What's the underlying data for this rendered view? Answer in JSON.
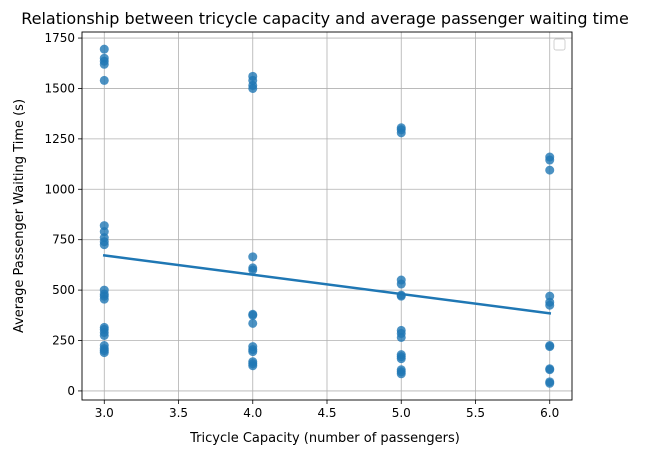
{
  "chart_data": {
    "type": "scatter",
    "title": "Relationship between tricycle capacity and average passenger waiting time",
    "xlabel": "Tricycle Capacity (number of passengers)",
    "ylabel": "Average Passenger Waiting Time (s)",
    "xlim": [
      2.85,
      6.15
    ],
    "ylim": [
      -45,
      1780
    ],
    "xticks": [
      3.0,
      3.5,
      4.0,
      4.5,
      5.0,
      5.5,
      6.0
    ],
    "xtick_labels": [
      "3.0",
      "3.5",
      "4.0",
      "4.5",
      "5.0",
      "5.5",
      "6.0"
    ],
    "yticks": [
      0,
      250,
      500,
      750,
      1000,
      1250,
      1500,
      1750
    ],
    "ytick_labels": [
      "0",
      "250",
      "500",
      "750",
      "1000",
      "1250",
      "1500",
      "1750"
    ],
    "grid": true,
    "legend": "top-right (empty)",
    "colors": {
      "points": "#1f77b4",
      "line": "#1f77b4"
    },
    "points": [
      [
        3.0,
        1695
      ],
      [
        3.0,
        1650
      ],
      [
        3.0,
        1635
      ],
      [
        3.0,
        1620
      ],
      [
        3.0,
        1540
      ],
      [
        3.0,
        820
      ],
      [
        3.0,
        790
      ],
      [
        3.0,
        760
      ],
      [
        3.0,
        740
      ],
      [
        3.0,
        725
      ],
      [
        3.0,
        500
      ],
      [
        3.0,
        480
      ],
      [
        3.0,
        470
      ],
      [
        3.0,
        455
      ],
      [
        3.0,
        315
      ],
      [
        3.0,
        305
      ],
      [
        3.0,
        290
      ],
      [
        3.0,
        275
      ],
      [
        3.0,
        225
      ],
      [
        3.0,
        210
      ],
      [
        3.0,
        200
      ],
      [
        3.0,
        190
      ],
      [
        4.0,
        1560
      ],
      [
        4.0,
        1540
      ],
      [
        4.0,
        1515
      ],
      [
        4.0,
        1500
      ],
      [
        4.0,
        665
      ],
      [
        4.0,
        610
      ],
      [
        4.0,
        600
      ],
      [
        4.0,
        380
      ],
      [
        4.0,
        375
      ],
      [
        4.0,
        335
      ],
      [
        4.0,
        220
      ],
      [
        4.0,
        205
      ],
      [
        4.0,
        195
      ],
      [
        4.0,
        145
      ],
      [
        4.0,
        135
      ],
      [
        4.0,
        125
      ],
      [
        5.0,
        1305
      ],
      [
        5.0,
        1295
      ],
      [
        5.0,
        1280
      ],
      [
        5.0,
        550
      ],
      [
        5.0,
        530
      ],
      [
        5.0,
        475
      ],
      [
        5.0,
        470
      ],
      [
        5.0,
        300
      ],
      [
        5.0,
        285
      ],
      [
        5.0,
        265
      ],
      [
        5.0,
        180
      ],
      [
        5.0,
        170
      ],
      [
        5.0,
        160
      ],
      [
        5.0,
        105
      ],
      [
        5.0,
        95
      ],
      [
        5.0,
        85
      ],
      [
        6.0,
        1160
      ],
      [
        6.0,
        1145
      ],
      [
        6.0,
        1095
      ],
      [
        6.0,
        470
      ],
      [
        6.0,
        440
      ],
      [
        6.0,
        425
      ],
      [
        6.0,
        225
      ],
      [
        6.0,
        220
      ],
      [
        6.0,
        110
      ],
      [
        6.0,
        105
      ],
      [
        6.0,
        45
      ],
      [
        6.0,
        38
      ]
    ],
    "trend_line": {
      "x": [
        3.0,
        6.0
      ],
      "y": [
        672,
        385
      ]
    }
  }
}
